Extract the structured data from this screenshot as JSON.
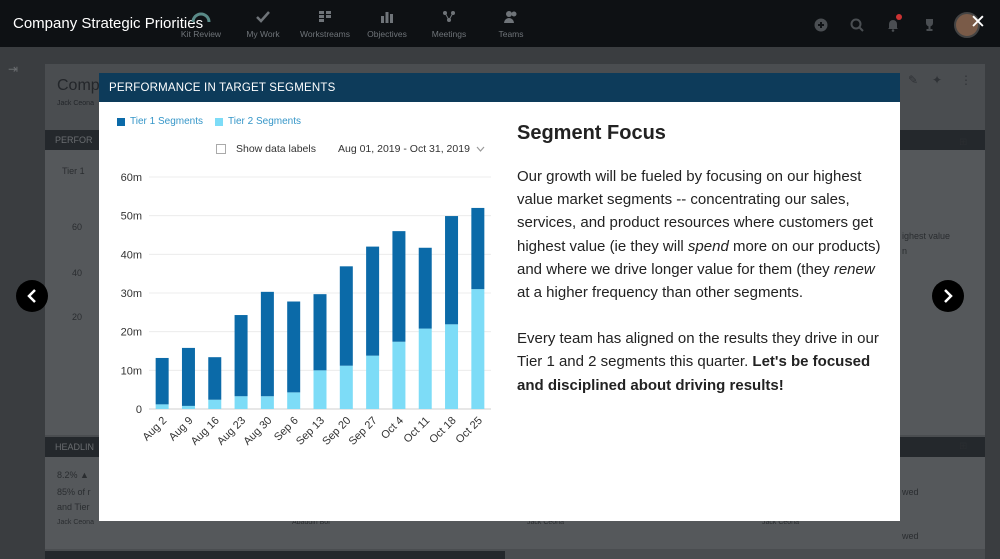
{
  "app": {
    "title": "Company Strategic Priorities"
  },
  "nav": [
    {
      "label": "Kit Review",
      "icon": "gauge-icon"
    },
    {
      "label": "My Work",
      "icon": "check-icon"
    },
    {
      "label": "Workstreams",
      "icon": "grid-icon"
    },
    {
      "label": "Objectives",
      "icon": "bar-chart-icon"
    },
    {
      "label": "Meetings",
      "icon": "meetings-icon"
    },
    {
      "label": "Teams",
      "icon": "people-icon"
    }
  ],
  "background": {
    "page_title": "Comp",
    "owner": "Jack Ceona",
    "panel1": "PERFOR",
    "panel2": "HEADLIN",
    "legend_fragment": "Tier 1",
    "axis_60": "60",
    "axis_40": "40",
    "axis_20": "20",
    "stat": "8.2% ▲",
    "line1": "85% of r",
    "line2": "and Tier",
    "author1": "Jack Ceona",
    "author2": "Abaddin Bol",
    "author3": "Jack Ceona",
    "author4": "Jack Ceona",
    "right1": "ighest value",
    "right2": "n",
    "right3": "wed",
    "right4": "wed"
  },
  "modal": {
    "header": "PERFORMANCE IN TARGET SEGMENTS",
    "legend": {
      "tier1": "Tier 1 Segments",
      "tier2": "Tier 2 Segments"
    },
    "show_labels": "Show data labels",
    "date_range": "Aug 01, 2019 - Oct 31, 2019",
    "side_title": "Segment Focus",
    "para1_a": "Our growth will be fueled by focusing on our highest value market segments -- concentrating our sales, services, and product resources where customers get highest value (ie they will ",
    "para1_b": "spend",
    "para1_c": " more on our products) and where we drive longer value for them (they ",
    "para1_d": "renew",
    "para1_e": " at a higher frequency than other segments.",
    "para2_a": "Every team has aligned on the results they drive in our Tier 1 and 2 segments this quarter. ",
    "para2_b": "Let's be focused and disciplined about driving results!"
  },
  "colors": {
    "tier1": "#0b6aa8",
    "tier2": "#7ddcf7",
    "header": "#0d3b5a"
  },
  "chart_data": {
    "type": "bar",
    "stacked": true,
    "categories": [
      "Aug 2",
      "Aug 9",
      "Aug 16",
      "Aug 23",
      "Aug 30",
      "Sep 6",
      "Sep 13",
      "Sep 20",
      "Sep 27",
      "Oct 4",
      "Oct 11",
      "Oct 18",
      "Oct 25"
    ],
    "series": [
      {
        "name": "Tier 1 Segments",
        "values": [
          12,
          15,
          11,
          21,
          27,
          23.5,
          19.7,
          25.7,
          28.2,
          28.6,
          20.9,
          28,
          21
        ]
      },
      {
        "name": "Tier 2 Segments",
        "values": [
          1.2,
          0.8,
          2.4,
          3.3,
          3.3,
          4.3,
          10,
          11.2,
          13.8,
          17.4,
          20.8,
          21.9,
          31
        ]
      }
    ],
    "yticks": [
      "0",
      "10m",
      "20m",
      "30m",
      "40m",
      "50m",
      "60m"
    ],
    "ylim": [
      0,
      60
    ],
    "grid": true
  }
}
